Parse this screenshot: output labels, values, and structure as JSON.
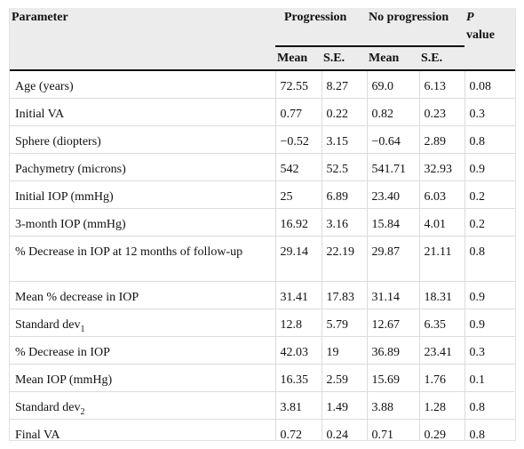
{
  "header": {
    "parameter": "Parameter",
    "progression": "Progression",
    "no_progression": "No progression",
    "p_value_italic": "P",
    "p_value_word": "value",
    "mean": "Mean",
    "se": "S.E."
  },
  "rows": [
    {
      "param": "Age (years)",
      "sub": "",
      "p_mean": "72.55",
      "p_se": "8.27",
      "n_mean": "69.0",
      "n_se": "6.13",
      "p": "0.08"
    },
    {
      "param": "Initial VA",
      "sub": "",
      "p_mean": "0.77",
      "p_se": "0.22",
      "n_mean": "0.82",
      "n_se": "0.23",
      "p": "0.3"
    },
    {
      "param": "Sphere (diopters)",
      "sub": "",
      "p_mean": "−0.52",
      "p_se": "3.15",
      "n_mean": "−0.64",
      "n_se": "2.89",
      "p": "0.8"
    },
    {
      "param": "Pachymetry (microns)",
      "sub": "",
      "p_mean": "542",
      "p_se": "52.5",
      "n_mean": "541.71",
      "n_se": "32.93",
      "p": "0.9"
    },
    {
      "param": "Initial IOP (mmHg)",
      "sub": "",
      "p_mean": "25",
      "p_se": "6.89",
      "n_mean": "23.40",
      "n_se": "6.03",
      "p": "0.2"
    },
    {
      "param": "3-month IOP (mmHg)",
      "sub": "",
      "p_mean": "16.92",
      "p_se": "3.16",
      "n_mean": "15.84",
      "n_se": "4.01",
      "p": "0.2"
    },
    {
      "param": "% Decrease in IOP at 12 months of follow-up",
      "sub": "",
      "p_mean": "29.14",
      "p_se": "22.19",
      "n_mean": "29.87",
      "n_se": "21.11",
      "p": "0.8"
    },
    {
      "param": "Mean % decrease in IOP",
      "sub": "",
      "p_mean": "31.41",
      "p_se": "17.83",
      "n_mean": "31.14",
      "n_se": "18.31",
      "p": "0.9"
    },
    {
      "param": "Standard dev",
      "sub": "1",
      "p_mean": "12.8",
      "p_se": "5.79",
      "n_mean": "12.67",
      "n_se": "6.35",
      "p": "0.9"
    },
    {
      "param": "% Decrease in IOP",
      "sub": "",
      "p_mean": "42.03",
      "p_se": "19",
      "n_mean": "36.89",
      "n_se": "23.41",
      "p": "0.3"
    },
    {
      "param": "Mean IOP (mmHg)",
      "sub": "",
      "p_mean": "16.35",
      "p_se": "2.59",
      "n_mean": "15.69",
      "n_se": "1.76",
      "p": "0.1"
    },
    {
      "param": "Standard dev",
      "sub": "2",
      "p_mean": "3.81",
      "p_se": "1.49",
      "n_mean": "3.88",
      "n_se": "1.28",
      "p": "0.8"
    },
    {
      "param": "Final VA",
      "sub": "",
      "p_mean": "0.72",
      "p_se": "0.24",
      "n_mean": "0.71",
      "n_se": "0.29",
      "p": "0.8"
    }
  ]
}
